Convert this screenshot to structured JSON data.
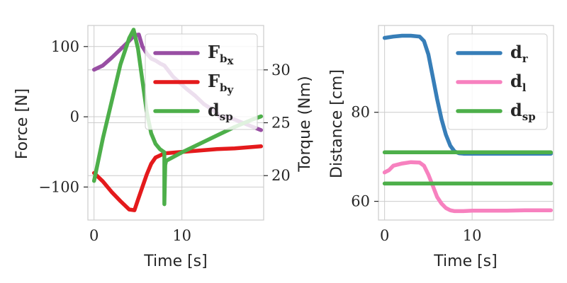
{
  "chart_data": [
    {
      "type": "line",
      "xlabel": "Time [s]",
      "ylabel": "Force [N]",
      "y2label": "Torque (Nm)",
      "xlim": [
        -0.7,
        19.3
      ],
      "ylim": [
        -147,
        130
      ],
      "y2lim": [
        15.8,
        34.2
      ],
      "xticks": [
        0,
        10
      ],
      "yticks": [
        -100,
        0,
        100
      ],
      "yticklabels": [
        "−100",
        "0",
        "100"
      ],
      "y2ticks": [
        20,
        25,
        30
      ],
      "grid": true,
      "legend": {
        "placement": "top-right"
      },
      "series": [
        {
          "name": "F",
          "name_sub": "b",
          "name_subsub": "x",
          "color": "#984ea3",
          "axis": "left",
          "x": [
            0,
            1,
            2,
            3,
            4,
            4.6,
            5.1,
            5.5,
            6,
            6.5,
            7,
            7.5,
            8,
            8.5,
            9,
            9.8,
            10.5,
            11.5,
            12.5,
            13.5,
            14,
            14.3,
            15,
            16,
            17,
            18,
            19
          ],
          "y": [
            67,
            73,
            84,
            96,
            108,
            116,
            117,
            100,
            90,
            83,
            80,
            76,
            73,
            65,
            57,
            48,
            40,
            30,
            18,
            10,
            5,
            0,
            0,
            -4,
            -9,
            -14,
            -19
          ]
        },
        {
          "name": "F",
          "name_sub": "b",
          "name_subsub": "y",
          "color": "#e41a1c",
          "axis": "left",
          "x": [
            0,
            1,
            2,
            3,
            4,
            4.6,
            5,
            5.5,
            6,
            6.5,
            7,
            7.5,
            8,
            10,
            12,
            14,
            16,
            18,
            19
          ],
          "y": [
            -80,
            -92,
            -107,
            -120,
            -132,
            -133,
            -118,
            -100,
            -82,
            -67,
            -58,
            -55,
            -52,
            -50,
            -48,
            -46,
            -45,
            -43,
            -42
          ]
        },
        {
          "name": "d",
          "name_sub": "sp",
          "color": "#4daf4a",
          "axis": "right",
          "x": [
            0,
            1,
            2,
            3,
            4,
            4.5,
            5,
            5.5,
            6,
            6.5,
            7,
            7.5,
            8,
            8,
            8.1,
            8.2,
            10,
            12,
            14,
            16,
            18,
            19
          ],
          "y": [
            19.5,
            23.5,
            27,
            30.5,
            33,
            33.8,
            32,
            29,
            26,
            24,
            23,
            22.5,
            22.2,
            17.3,
            21,
            21.4,
            22.2,
            23,
            23.8,
            24.6,
            25.3,
            25.6
          ]
        }
      ]
    },
    {
      "type": "line",
      "xlabel": "Time [s]",
      "ylabel": "Distance [cm]",
      "xlim": [
        -0.7,
        19.3
      ],
      "ylim": [
        55.8,
        99.5
      ],
      "xticks": [
        0,
        10
      ],
      "yticks": [
        60,
        80
      ],
      "grid": true,
      "legend": {
        "placement": "top-right"
      },
      "series": [
        {
          "name": "d",
          "name_sub": "r",
          "color": "#377eb8",
          "x": [
            0,
            1,
            2,
            3,
            4,
            4.5,
            5,
            5.5,
            6,
            6.5,
            7,
            7.5,
            8,
            8.5,
            9,
            10,
            12,
            14,
            16,
            18,
            19
          ],
          "y": [
            96.7,
            97,
            97.2,
            97.2,
            97,
            96,
            93,
            88,
            83,
            78.5,
            75,
            72.5,
            71.2,
            70.8,
            70.7,
            70.7,
            70.7,
            70.7,
            70.7,
            70.7,
            70.7
          ]
        },
        {
          "name": "d",
          "name_sub": "l",
          "color": "#f781bf",
          "x": [
            0,
            0.5,
            1,
            2,
            3,
            4,
            4.5,
            5,
            5.5,
            6,
            6.5,
            7,
            7.5,
            8,
            9,
            10,
            12,
            14,
            16,
            18,
            19
          ],
          "y": [
            66.5,
            67,
            68,
            68.5,
            68.8,
            68.7,
            68,
            66,
            63.5,
            61,
            59.5,
            58.5,
            58,
            57.8,
            57.8,
            57.9,
            57.9,
            57.9,
            58,
            58,
            58
          ]
        },
        {
          "name": "d",
          "name_sub": "sp",
          "color": "#4daf4a",
          "x": [
            0,
            19
          ],
          "y": [
            71,
            71
          ]
        },
        {
          "name": "",
          "color": "#4daf4a",
          "legend": false,
          "x": [
            0,
            19
          ],
          "y": [
            64,
            64
          ]
        }
      ]
    }
  ]
}
